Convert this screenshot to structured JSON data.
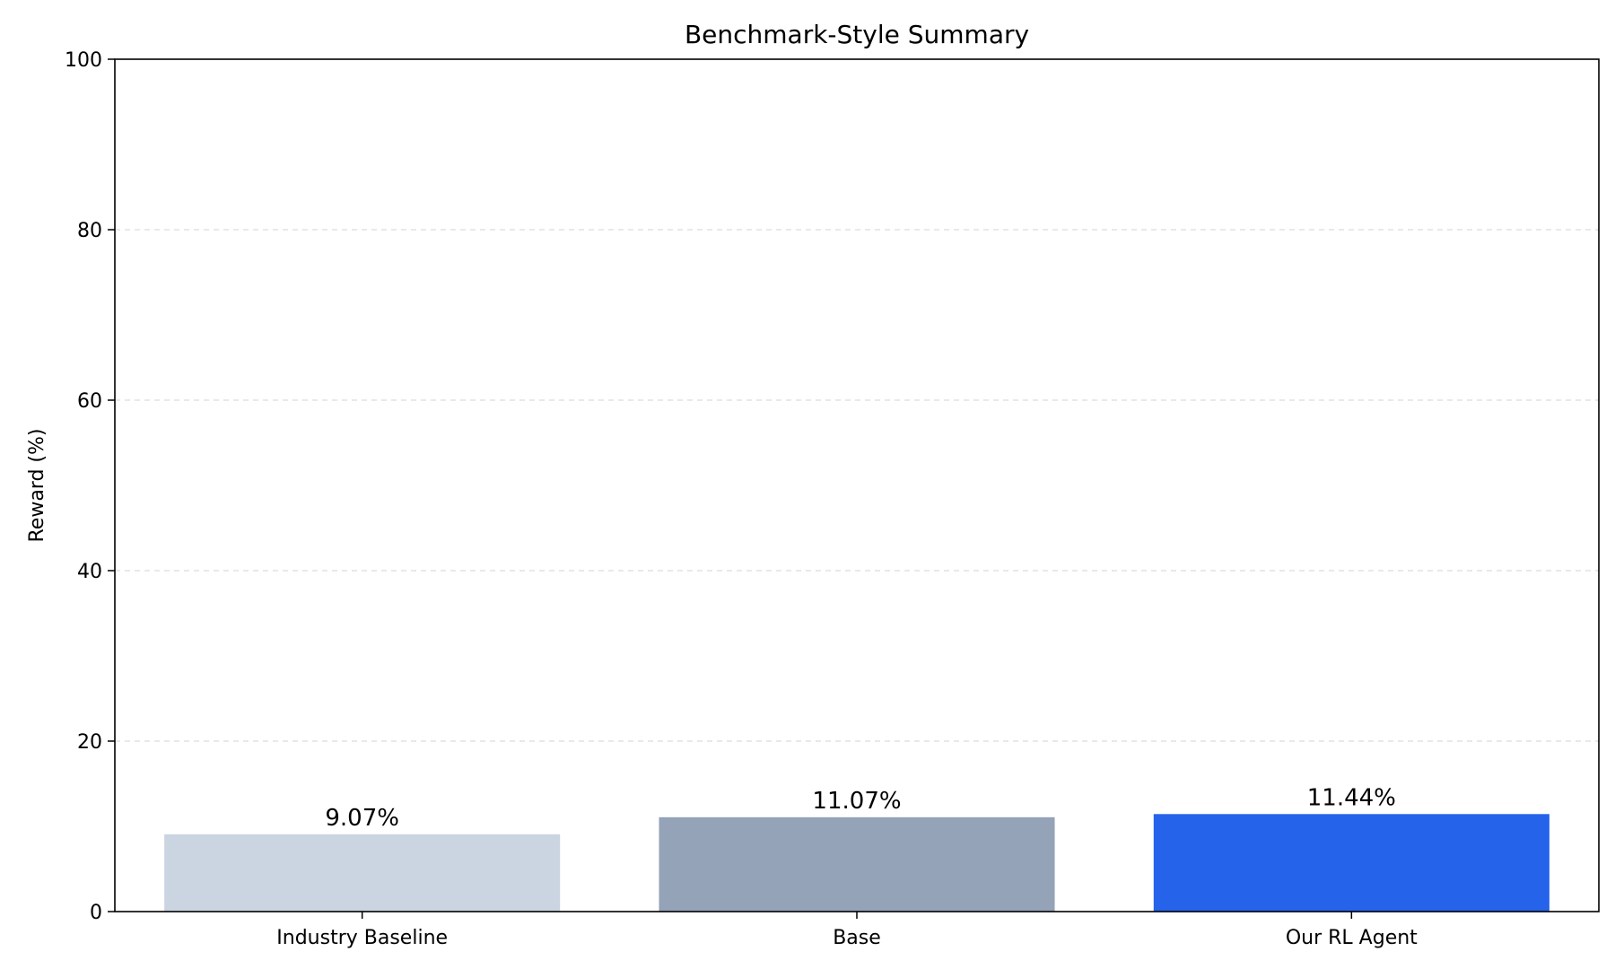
{
  "chart_data": {
    "type": "bar",
    "title": "Benchmark-Style Summary",
    "xlabel": "",
    "ylabel": "Reward (%)",
    "categories": [
      "Industry Baseline",
      "Base",
      "Our RL Agent"
    ],
    "values": [
      9.07,
      11.07,
      11.44
    ],
    "value_labels": [
      "9.07%",
      "11.07%",
      "11.44%"
    ],
    "bar_colors": [
      "#cbd5e1",
      "#94a3b8",
      "#2563eb"
    ],
    "ylim": [
      0,
      100
    ],
    "yticks": [
      0,
      20,
      40,
      60,
      80,
      100
    ],
    "ytick_labels": [
      "0",
      "20",
      "40",
      "60",
      "80",
      "100"
    ],
    "grid": "horizontal dashed",
    "grid_color": "#e2e2e2"
  }
}
